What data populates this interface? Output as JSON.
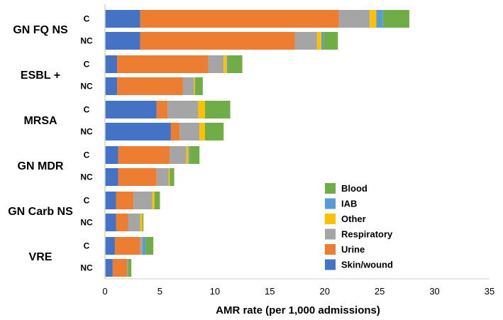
{
  "chart_data": {
    "type": "bar",
    "orientation": "horizontal",
    "stacked": true,
    "xlabel": "AMR rate (per 1,000 admissions)",
    "xlim": [
      0,
      35
    ],
    "xticks": [
      0,
      5,
      10,
      15,
      20,
      25,
      30,
      35
    ],
    "legend_position": "bottom-right",
    "components": [
      "Skin/wound",
      "Urine",
      "Respiratory",
      "Other",
      "IAB",
      "Blood"
    ],
    "legend_order": [
      "Blood",
      "IAB",
      "Other",
      "Respiratory",
      "Urine",
      "Skin/wound"
    ],
    "colors": {
      "Skin/wound": "#4472C4",
      "Urine": "#ED7D31",
      "Respiratory": "#A5A5A5",
      "Other": "#FFC000",
      "IAB": "#5B9BD5",
      "Blood": "#70AD47"
    },
    "groups": [
      {
        "name": "GN FQ NS",
        "bars": [
          {
            "label": "C",
            "values": [
              3.2,
              18.1,
              2.8,
              0.6,
              0.6,
              2.4
            ]
          },
          {
            "label": "NC",
            "values": [
              3.2,
              14.1,
              2.0,
              0.4,
              0.2,
              1.3
            ]
          }
        ]
      },
      {
        "name": "ESBL +",
        "bars": [
          {
            "label": "C",
            "values": [
              1.1,
              8.3,
              1.4,
              0.3,
              0.1,
              1.3
            ]
          },
          {
            "label": "NC",
            "values": [
              1.1,
              6.0,
              1.0,
              0.1,
              0.0,
              0.7
            ]
          }
        ]
      },
      {
        "name": "MRSA",
        "bars": [
          {
            "label": "C",
            "values": [
              4.7,
              1.0,
              2.8,
              0.6,
              0.0,
              2.3
            ]
          },
          {
            "label": "NC",
            "values": [
              6.0,
              0.8,
              1.8,
              0.5,
              0.0,
              1.7
            ]
          }
        ]
      },
      {
        "name": "GN MDR",
        "bars": [
          {
            "label": "C",
            "values": [
              1.2,
              4.7,
              1.5,
              0.2,
              0.1,
              0.9
            ]
          },
          {
            "label": "NC",
            "values": [
              1.2,
              3.5,
              1.1,
              0.1,
              0.0,
              0.4
            ]
          }
        ]
      },
      {
        "name": "GN Carb NS",
        "bars": [
          {
            "label": "C",
            "values": [
              1.0,
              1.6,
              1.7,
              0.2,
              0.0,
              0.5
            ]
          },
          {
            "label": "NC",
            "values": [
              1.0,
              1.1,
              1.1,
              0.2,
              0.0,
              0.1
            ]
          }
        ]
      },
      {
        "name": "VRE",
        "bars": [
          {
            "label": "C",
            "values": [
              0.9,
              2.3,
              0.2,
              0.0,
              0.3,
              0.7
            ]
          },
          {
            "label": "NC",
            "values": [
              0.7,
              1.3,
              0.1,
              0.0,
              0.0,
              0.3
            ]
          }
        ]
      }
    ]
  }
}
